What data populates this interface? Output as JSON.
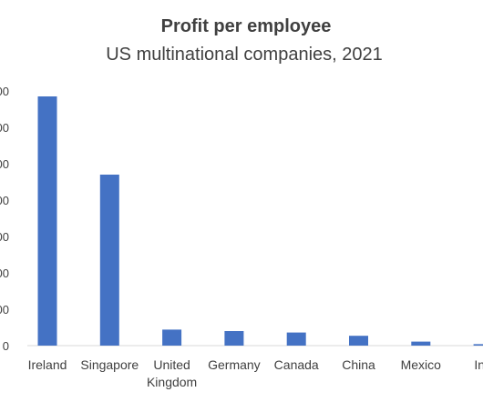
{
  "chart_data": {
    "type": "bar",
    "title": "Profit per employee",
    "subtitle": "US multinational companies, 2021",
    "xlabel": "",
    "ylabel": "",
    "categories": [
      "Ireland",
      "Singapore",
      "United\nKingdom",
      "Germany",
      "Canada",
      "China",
      "Mexico",
      "India"
    ],
    "x_tick_labels_visible": [
      "Ireland",
      "Singapore",
      "United\nKingdom",
      "Germany",
      "Canada",
      "China",
      "Mexico",
      "Ind"
    ],
    "values": [
      685,
      470,
      44,
      40,
      36,
      27,
      11,
      4
    ],
    "y_tick_labels_visible": [
      "00",
      "00",
      "00",
      "00",
      "00",
      "00",
      "00",
      "0"
    ],
    "ylim": [
      0,
      700
    ],
    "y_tick_step": 100,
    "grid": false,
    "legend": "none",
    "colors": {
      "bar": "#4472C4",
      "axis": "#d9d9d9",
      "text": "#404040"
    }
  }
}
